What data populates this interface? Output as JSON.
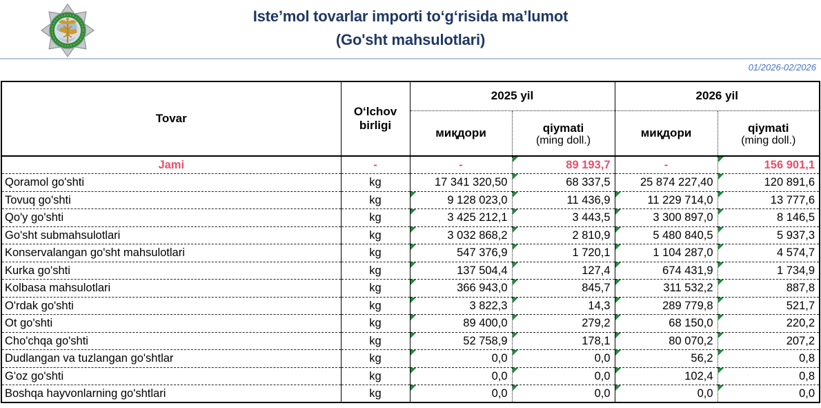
{
  "header": {
    "title_line1": "Isteʼmol tovarlar importi toʻgʻrisida maʼlumot",
    "title_line2": "(Go'sht mahsulotlari)",
    "period": "01/2026-02/2026",
    "logo": "uzbekistan-customs-emblem"
  },
  "colors": {
    "title_navy": "#1f3864",
    "period_blue": "#4472c4",
    "total_red": "#e8506a",
    "flag_green": "#1e8a3c",
    "rule_blue": "#b5c7dd"
  },
  "table": {
    "header": {
      "product": "Tovar",
      "unit": "Oʻlchov birligi",
      "groups": [
        {
          "label": "2025 yil"
        },
        {
          "label": "2026 yil"
        }
      ],
      "qty_label": "миқдори",
      "value_label": "qiymati",
      "value_unit": "(ming doll.)"
    },
    "rows": [
      {
        "name": "Jami",
        "unit": "-",
        "q25": "-",
        "v25": "89 193,7",
        "q26": "-",
        "v26": "156 901,1",
        "total": true,
        "flags": [
          false,
          true,
          false,
          true
        ]
      },
      {
        "name": "Qoramol go'shti",
        "unit": "kg",
        "q25": "17 341 320,50",
        "v25": "68 337,5",
        "q26": "25 874 227,40",
        "v26": "120 891,6",
        "total": false,
        "flags": [
          false,
          true,
          false,
          true
        ]
      },
      {
        "name": "Tovuq go'shti",
        "unit": "kg",
        "q25": "9 128 023,0",
        "v25": "11 436,9",
        "q26": "11 229 714,0",
        "v26": "13 777,6",
        "total": false,
        "flags": [
          true,
          true,
          true,
          true
        ]
      },
      {
        "name": "Qo'y go'shti",
        "unit": "kg",
        "q25": "3 425 212,1",
        "v25": "3 443,5",
        "q26": "3 300 897,0",
        "v26": "8 146,5",
        "total": false,
        "flags": [
          true,
          true,
          true,
          true
        ]
      },
      {
        "name": "Go'sht submahsulotlari",
        "unit": "kg",
        "q25": "3 032 868,2",
        "v25": "2 810,9",
        "q26": "5 480 840,5",
        "v26": "5 937,3",
        "total": false,
        "flags": [
          true,
          true,
          true,
          true
        ]
      },
      {
        "name": "Konservalangan go'sht mahsulotlari",
        "unit": "kg",
        "q25": "547 376,9",
        "v25": "1 720,1",
        "q26": "1 104 287,0",
        "v26": "4 574,7",
        "total": false,
        "flags": [
          true,
          true,
          true,
          true
        ]
      },
      {
        "name": "Kurka go'shti",
        "unit": "kg",
        "q25": "137 504,4",
        "v25": "127,4",
        "q26": "674 431,9",
        "v26": "1 734,9",
        "total": false,
        "flags": [
          true,
          true,
          true,
          true
        ]
      },
      {
        "name": "Kolbasa mahsulotlari",
        "unit": "kg",
        "q25": "366 943,0",
        "v25": "845,7",
        "q26": "311 532,2",
        "v26": "887,8",
        "total": false,
        "flags": [
          true,
          true,
          true,
          true
        ]
      },
      {
        "name": "O'rdak go'shti",
        "unit": "kg",
        "q25": "3 822,3",
        "v25": "14,3",
        "q26": "289 779,8",
        "v26": "521,7",
        "total": false,
        "flags": [
          true,
          true,
          true,
          true
        ]
      },
      {
        "name": "Ot go'shti",
        "unit": "kg",
        "q25": "89 400,0",
        "v25": "279,2",
        "q26": "68 150,0",
        "v26": "220,2",
        "total": false,
        "flags": [
          true,
          true,
          true,
          true
        ]
      },
      {
        "name": "Cho'chqa go'shti",
        "unit": "kg",
        "q25": "52 758,9",
        "v25": "178,1",
        "q26": "80 070,2",
        "v26": "207,2",
        "total": false,
        "flags": [
          true,
          true,
          true,
          true
        ]
      },
      {
        "name": "Dudlangan va tuzlangan go'shtlar",
        "unit": "kg",
        "q25": "0,0",
        "v25": "0,0",
        "q26": "56,2",
        "v26": "0,8",
        "total": false,
        "flags": [
          true,
          true,
          true,
          true
        ]
      },
      {
        "name": "G'oz go'shti",
        "unit": "kg",
        "q25": "0,0",
        "v25": "0,0",
        "q26": "102,4",
        "v26": "0,8",
        "total": false,
        "flags": [
          true,
          true,
          true,
          true
        ]
      },
      {
        "name": "Boshqa hayvonlarning go'shtlari",
        "unit": "kg",
        "q25": "0,0",
        "v25": "0,0",
        "q26": "0,0",
        "v26": "0,0",
        "total": false,
        "flags": [
          true,
          true,
          true,
          true
        ]
      }
    ]
  }
}
